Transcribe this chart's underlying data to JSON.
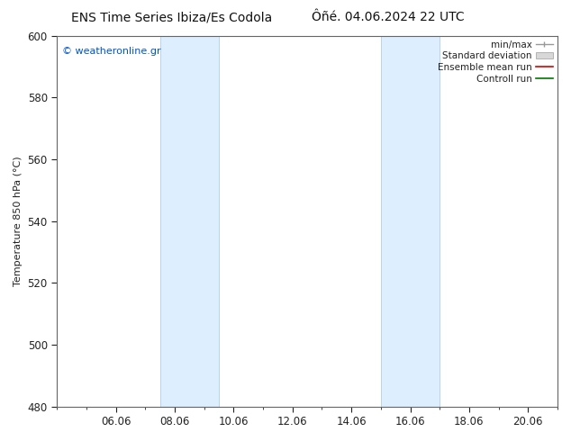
{
  "title_left": "ENS Time Series Ibiza/Es Codola",
  "title_right": "Ôñé. 04.06.2024 22 UTC",
  "ylabel": "Temperature 850 hPa (°C)",
  "ylim": [
    480,
    600
  ],
  "yticks": [
    480,
    500,
    520,
    540,
    560,
    580,
    600
  ],
  "xtick_labels": [
    "06.06",
    "08.06",
    "10.06",
    "12.06",
    "14.06",
    "16.06",
    "18.06",
    "20.06"
  ],
  "xtick_positions": [
    2,
    4,
    6,
    8,
    10,
    12,
    14,
    16
  ],
  "xlim": [
    0,
    17
  ],
  "shaded_bands": [
    {
      "x_start": 3.5,
      "x_end": 5.5
    },
    {
      "x_start": 11.0,
      "x_end": 13.0
    }
  ],
  "shaded_color": "#ddeeff",
  "shaded_edge_color": "#b8d4ee",
  "watermark_text": "© weatheronline.gr",
  "watermark_color": "#0055cc",
  "legend_labels": [
    "min/max",
    "Standard deviation",
    "Ensemble mean run",
    "Controll run"
  ],
  "legend_colors_line": [
    "#999999",
    "#cccccc",
    "#dd0000",
    "#007700"
  ],
  "bg_color": "#ffffff",
  "spine_color": "#666666",
  "tick_color": "#222222",
  "title_fontsize": 10,
  "axis_label_fontsize": 8,
  "tick_fontsize": 8.5,
  "legend_fontsize": 7.5
}
